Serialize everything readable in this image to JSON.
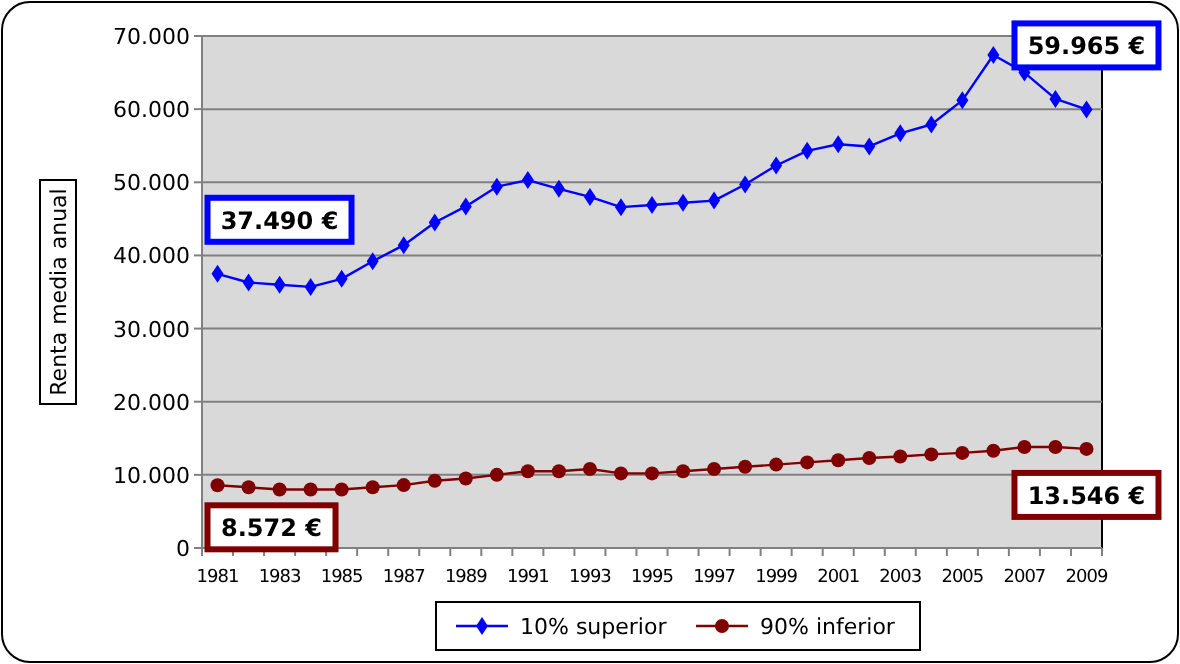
{
  "chart_data": {
    "type": "line",
    "ylabel": "Renta media anual",
    "categories": [
      "1981",
      null,
      "1983",
      null,
      "1985",
      null,
      "1987",
      null,
      "1989",
      null,
      "1991",
      null,
      "1993",
      null,
      "1995",
      null,
      "1997",
      null,
      "1999",
      null,
      "2001",
      null,
      "2003",
      null,
      "2005",
      null,
      "2007",
      null,
      "2009"
    ],
    "series": [
      {
        "name": "10% superior",
        "color": "#0000ff",
        "marker": "diamond",
        "values": [
          37490,
          36300,
          36000,
          35700,
          36800,
          39200,
          41400,
          44500,
          46700,
          49400,
          50300,
          49100,
          48000,
          46600,
          46900,
          47200,
          47500,
          49700,
          52300,
          54300,
          55200,
          54900,
          56700,
          57900,
          61200,
          67400,
          65000,
          61400,
          59965
        ]
      },
      {
        "name": "90% inferior",
        "color": "#800000",
        "marker": "circle",
        "values": [
          8572,
          8300,
          8000,
          8000,
          8000,
          8300,
          8600,
          9200,
          9500,
          10000,
          10500,
          10500,
          10800,
          10200,
          10200,
          10500,
          10800,
          11100,
          11400,
          11700,
          12000,
          12300,
          12500,
          12800,
          13000,
          13300,
          13800,
          13800,
          13546
        ]
      }
    ],
    "ylim": [
      0,
      70000
    ],
    "yticks": [
      0,
      {
        "value": 10000,
        "label": "10.000"
      },
      {
        "value": 20000,
        "label": "20.000"
      },
      {
        "value": 30000,
        "label": "30.000"
      },
      {
        "value": 40000,
        "label": "40.000"
      },
      {
        "value": 50000,
        "label": "50.000"
      },
      {
        "value": 60000,
        "label": "60.000"
      },
      {
        "value": 70000,
        "label": "70.000"
      }
    ],
    "grid": "y",
    "legend": "bottom",
    "annotations": [
      {
        "text": "37.490 €",
        "x": "1981",
        "y": 37490
      },
      {
        "text": "59.965 €",
        "x": "2009",
        "y": 59965
      },
      {
        "text": "8.572 €",
        "x": "1981",
        "y": 8572
      },
      {
        "text": "13.546 €",
        "x": "2009",
        "y": 13546
      }
    ]
  }
}
